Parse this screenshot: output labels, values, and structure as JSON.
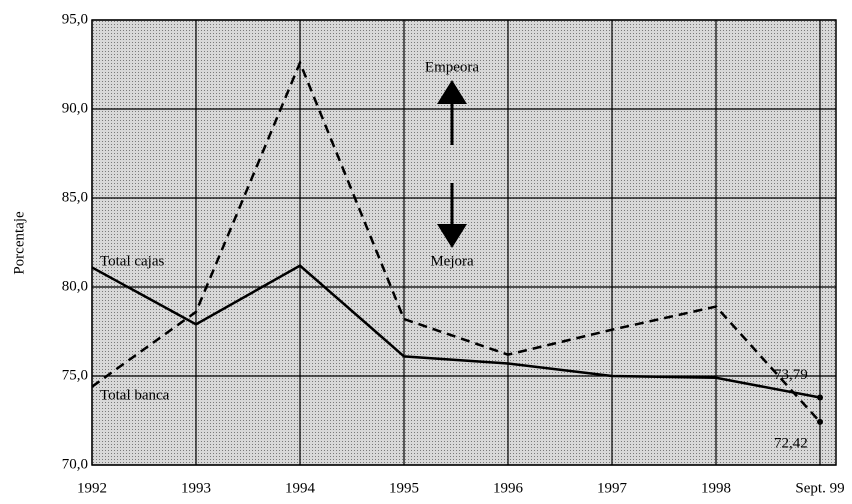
{
  "chart_data": {
    "type": "line",
    "y_label": "Porcentaje",
    "categories": [
      "1992",
      "1993",
      "1994",
      "1995",
      "1996",
      "1997",
      "1998",
      "Sept. 99"
    ],
    "series": [
      {
        "name": "Total cajas",
        "color": "#000000",
        "dash": false,
        "values": [
          81.1,
          77.9,
          81.2,
          76.1,
          75.7,
          75.0,
          74.9,
          73.79
        ],
        "value_labels": [
          null,
          null,
          null,
          null,
          null,
          null,
          null,
          "73,79"
        ]
      },
      {
        "name": "Total banca",
        "color": "#000000",
        "dash": true,
        "values": [
          74.4,
          78.6,
          92.6,
          78.2,
          76.2,
          77.6,
          78.9,
          72.42
        ],
        "value_labels": [
          null,
          null,
          null,
          null,
          null,
          null,
          null,
          "72,42"
        ]
      }
    ],
    "ylim": [
      70,
      95
    ],
    "yticks": [
      {
        "value": 70,
        "label": "70,0"
      },
      {
        "value": 75,
        "label": "75,0"
      },
      {
        "value": 80,
        "label": "80,0"
      },
      {
        "value": 85,
        "label": "85,0"
      },
      {
        "value": 90,
        "label": "90,0"
      },
      {
        "value": 95,
        "label": "95,0"
      }
    ],
    "annotations": [
      "Empeora",
      "Mejora"
    ],
    "grid": true
  }
}
